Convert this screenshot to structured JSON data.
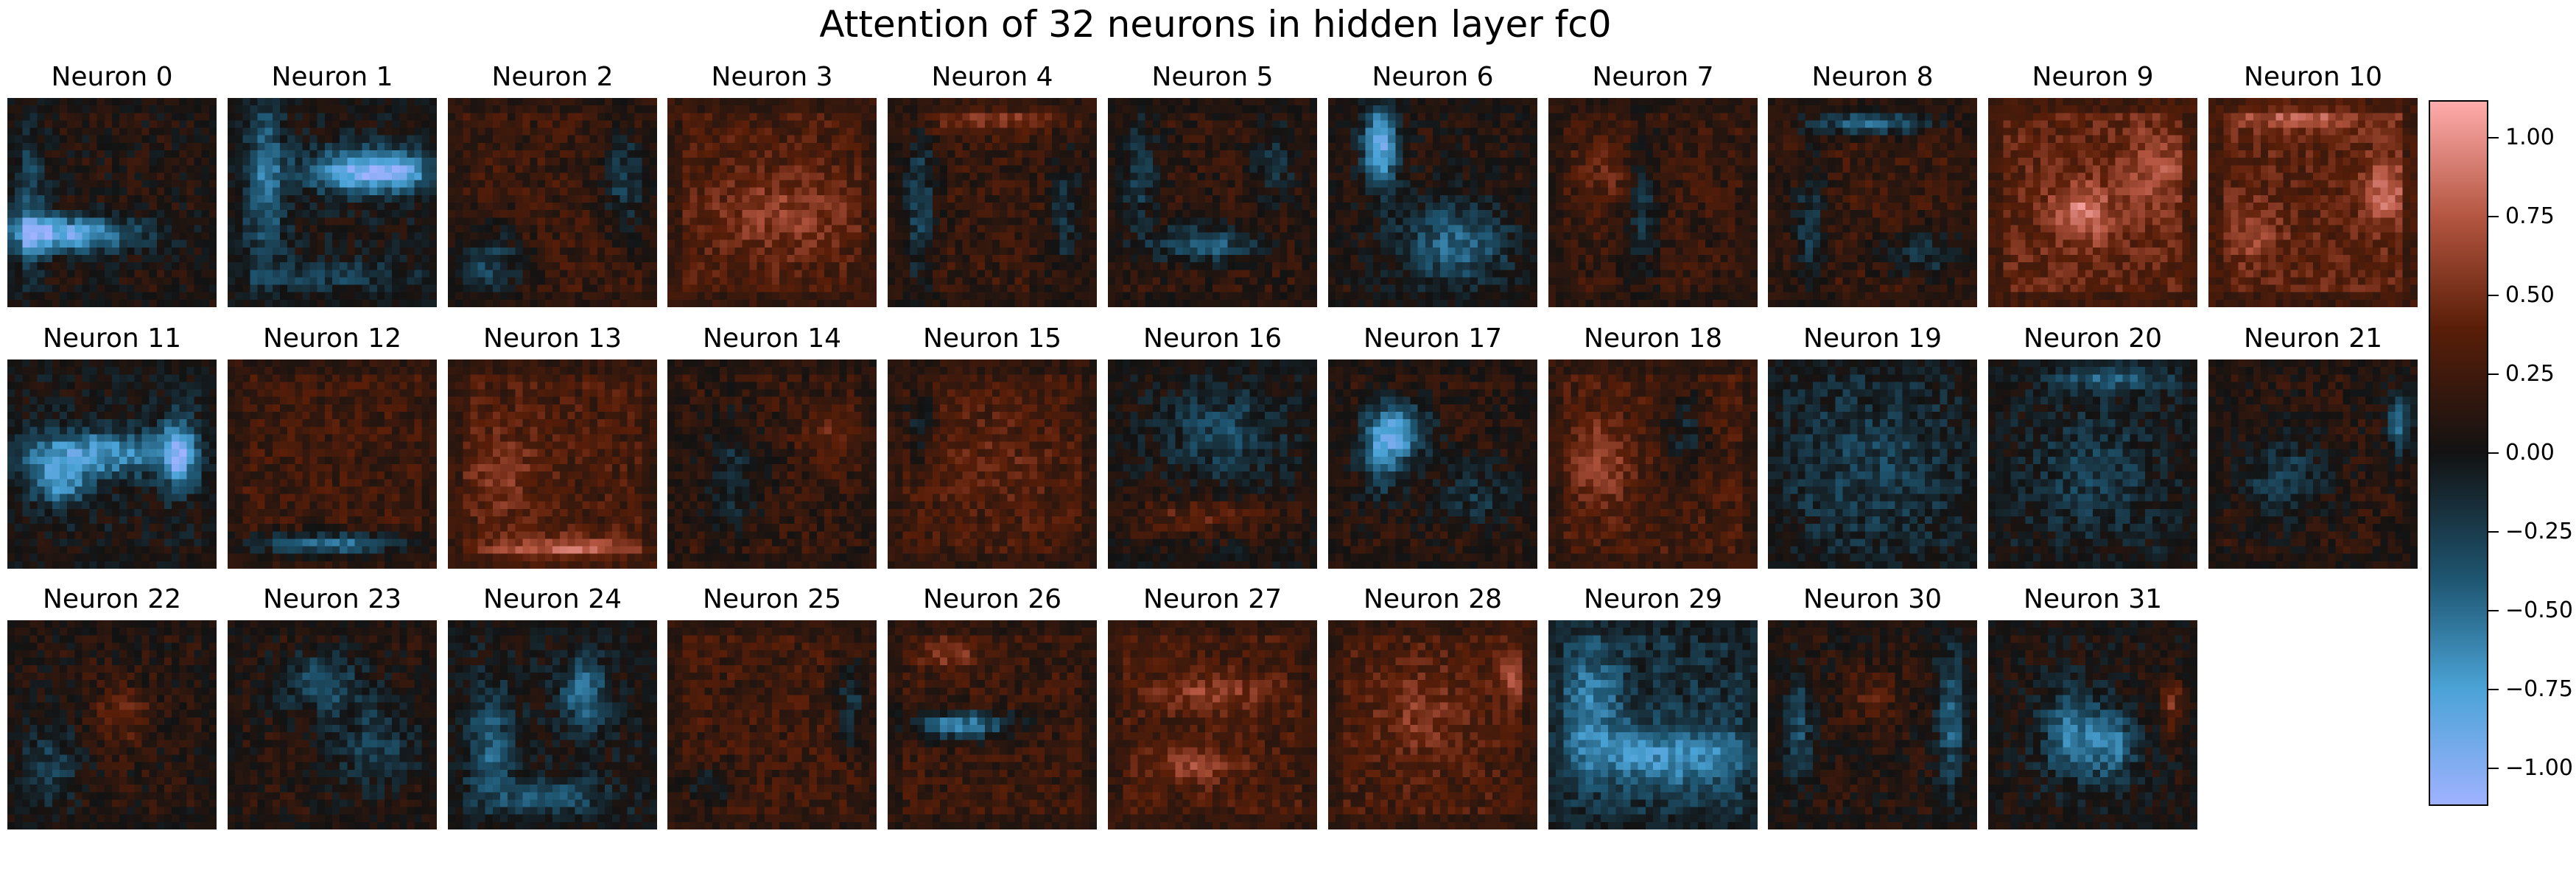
{
  "chart_data": {
    "type": "heatmap",
    "title": "Attention of 32 neurons in hidden layer fc0",
    "layout": {
      "rows": 3,
      "cols": 11
    },
    "grid_resolution": 28,
    "value_range": [
      -1.12,
      1.12
    ],
    "colormap": "diverging-berlin",
    "colormap_stops": [
      {
        "value": -1.12,
        "color": "#9fb2ff"
      },
      {
        "value": -0.75,
        "color": "#4aa3d6"
      },
      {
        "value": -0.4,
        "color": "#1e5570"
      },
      {
        "value": 0.0,
        "color": "#121212"
      },
      {
        "value": 0.4,
        "color": "#5a1e08"
      },
      {
        "value": 0.75,
        "color": "#b35540"
      },
      {
        "value": 1.12,
        "color": "#ffacac"
      }
    ],
    "colorbar": {
      "placement": "right",
      "ticks": [
        "1.00",
        "0.75",
        "0.50",
        "0.25",
        "0.00",
        "−0.25",
        "−0.50",
        "−0.75",
        "−1.00"
      ],
      "tick_values": [
        1.0,
        0.75,
        0.5,
        0.25,
        0.0,
        -0.25,
        -0.5,
        -0.75,
        -1.0
      ]
    },
    "panels": [
      {
        "label": "Neuron 0",
        "bias": 0.08,
        "blobs": [
          [
            0.22,
            0.65,
            0.28,
            0.06,
            -1.0
          ],
          [
            0.1,
            0.5,
            0.06,
            0.25,
            -0.45
          ]
        ]
      },
      {
        "label": "Neuron 1",
        "bias": 0.02,
        "blobs": [
          [
            0.7,
            0.35,
            0.22,
            0.07,
            -1.1
          ],
          [
            0.18,
            0.4,
            0.07,
            0.3,
            -0.5
          ],
          [
            0.5,
            0.85,
            0.3,
            0.05,
            -0.3
          ]
        ]
      },
      {
        "label": "Neuron 2",
        "bias": 0.22,
        "blobs": [
          [
            0.2,
            0.8,
            0.12,
            0.12,
            -0.5
          ],
          [
            0.85,
            0.4,
            0.08,
            0.18,
            -0.45
          ]
        ]
      },
      {
        "label": "Neuron 3",
        "bias": 0.3,
        "blobs": [
          [
            0.55,
            0.55,
            0.25,
            0.15,
            0.3
          ]
        ]
      },
      {
        "label": "Neuron 4",
        "bias": 0.2,
        "blobs": [
          [
            0.5,
            0.1,
            0.3,
            0.05,
            0.35
          ],
          [
            0.15,
            0.5,
            0.06,
            0.3,
            -0.45
          ],
          [
            0.85,
            0.55,
            0.06,
            0.25,
            -0.35
          ]
        ]
      },
      {
        "label": "Neuron 5",
        "bias": 0.15,
        "blobs": [
          [
            0.45,
            0.7,
            0.18,
            0.06,
            -0.6
          ],
          [
            0.15,
            0.35,
            0.06,
            0.2,
            -0.4
          ],
          [
            0.8,
            0.3,
            0.08,
            0.15,
            -0.3
          ]
        ]
      },
      {
        "label": "Neuron 6",
        "bias": 0.1,
        "blobs": [
          [
            0.25,
            0.22,
            0.06,
            0.14,
            -1.0
          ],
          [
            0.6,
            0.7,
            0.2,
            0.15,
            -0.55
          ]
        ]
      },
      {
        "label": "Neuron 7",
        "bias": 0.2,
        "blobs": [
          [
            0.45,
            0.5,
            0.06,
            0.25,
            -0.4
          ],
          [
            0.3,
            0.35,
            0.12,
            0.12,
            0.25
          ]
        ]
      },
      {
        "label": "Neuron 8",
        "bias": 0.22,
        "blobs": [
          [
            0.5,
            0.12,
            0.22,
            0.04,
            -0.7
          ],
          [
            0.2,
            0.6,
            0.06,
            0.25,
            -0.4
          ],
          [
            0.75,
            0.75,
            0.15,
            0.08,
            -0.4
          ]
        ]
      },
      {
        "label": "Neuron 9",
        "bias": 0.42,
        "blobs": [
          [
            0.45,
            0.55,
            0.1,
            0.1,
            0.5
          ],
          [
            0.8,
            0.35,
            0.1,
            0.15,
            0.3
          ]
        ]
      },
      {
        "label": "Neuron 10",
        "bias": 0.4,
        "blobs": [
          [
            0.45,
            0.08,
            0.25,
            0.05,
            0.4
          ],
          [
            0.85,
            0.45,
            0.07,
            0.12,
            0.45
          ],
          [
            0.2,
            0.65,
            0.1,
            0.1,
            0.25
          ]
        ]
      },
      {
        "label": "Neuron 11",
        "bias": 0.02,
        "blobs": [
          [
            0.4,
            0.45,
            0.3,
            0.08,
            -0.75
          ],
          [
            0.82,
            0.45,
            0.06,
            0.12,
            -0.85
          ],
          [
            0.25,
            0.6,
            0.1,
            0.08,
            -0.6
          ]
        ]
      },
      {
        "label": "Neuron 12",
        "bias": 0.25,
        "blobs": [
          [
            0.5,
            0.88,
            0.3,
            0.04,
            -0.75
          ]
        ]
      },
      {
        "label": "Neuron 13",
        "bias": 0.3,
        "blobs": [
          [
            0.55,
            0.92,
            0.25,
            0.05,
            0.55
          ],
          [
            0.25,
            0.55,
            0.12,
            0.15,
            0.25
          ]
        ]
      },
      {
        "label": "Neuron 14",
        "bias": 0.18,
        "blobs": [
          [
            0.3,
            0.55,
            0.1,
            0.2,
            -0.35
          ],
          [
            0.8,
            0.35,
            0.1,
            0.1,
            0.3
          ]
        ]
      },
      {
        "label": "Neuron 15",
        "bias": 0.25,
        "blobs": [
          [
            0.5,
            0.5,
            0.25,
            0.2,
            0.15
          ],
          [
            0.15,
            0.3,
            0.05,
            0.15,
            -0.35
          ]
        ]
      },
      {
        "label": "Neuron 16",
        "bias": 0.05,
        "blobs": [
          [
            0.45,
            0.75,
            0.3,
            0.06,
            0.35
          ],
          [
            0.55,
            0.35,
            0.2,
            0.15,
            -0.35
          ]
        ]
      },
      {
        "label": "Neuron 17",
        "bias": 0.12,
        "blobs": [
          [
            0.35,
            0.35,
            0.1,
            0.1,
            -0.7
          ],
          [
            0.25,
            0.45,
            0.07,
            0.14,
            -0.6
          ],
          [
            0.7,
            0.65,
            0.15,
            0.1,
            -0.3
          ]
        ]
      },
      {
        "label": "Neuron 18",
        "bias": 0.28,
        "blobs": [
          [
            0.25,
            0.5,
            0.1,
            0.15,
            0.35
          ],
          [
            0.65,
            0.35,
            0.08,
            0.15,
            -0.35
          ]
        ]
      },
      {
        "label": "Neuron 19",
        "bias": 0.0,
        "blobs": [
          [
            0.5,
            0.5,
            0.3,
            0.3,
            -0.25
          ]
        ]
      },
      {
        "label": "Neuron 20",
        "bias": 0.0,
        "blobs": [
          [
            0.6,
            0.08,
            0.2,
            0.05,
            -0.45
          ],
          [
            0.5,
            0.55,
            0.2,
            0.2,
            -0.25
          ]
        ]
      },
      {
        "label": "Neuron 21",
        "bias": 0.12,
        "blobs": [
          [
            0.92,
            0.3,
            0.04,
            0.1,
            -0.75
          ],
          [
            0.35,
            0.55,
            0.15,
            0.15,
            -0.35
          ]
        ]
      },
      {
        "label": "Neuron 22",
        "bias": 0.1,
        "blobs": [
          [
            0.55,
            0.45,
            0.1,
            0.1,
            0.35
          ],
          [
            0.2,
            0.7,
            0.1,
            0.15,
            -0.35
          ]
        ]
      },
      {
        "label": "Neuron 23",
        "bias": 0.1,
        "blobs": [
          [
            0.45,
            0.3,
            0.15,
            0.1,
            -0.45
          ],
          [
            0.7,
            0.6,
            0.15,
            0.15,
            -0.35
          ]
        ]
      },
      {
        "label": "Neuron 24",
        "bias": 0.02,
        "blobs": [
          [
            0.65,
            0.35,
            0.08,
            0.12,
            -0.55
          ],
          [
            0.2,
            0.6,
            0.08,
            0.2,
            -0.45
          ],
          [
            0.5,
            0.85,
            0.2,
            0.06,
            -0.4
          ]
        ]
      },
      {
        "label": "Neuron 25",
        "bias": 0.25,
        "blobs": [
          [
            0.88,
            0.4,
            0.05,
            0.15,
            -0.45
          ],
          [
            0.2,
            0.8,
            0.1,
            0.08,
            -0.3
          ]
        ]
      },
      {
        "label": "Neuron 26",
        "bias": 0.22,
        "blobs": [
          [
            0.35,
            0.5,
            0.18,
            0.05,
            -0.8
          ],
          [
            0.3,
            0.15,
            0.1,
            0.06,
            0.35
          ]
        ]
      },
      {
        "label": "Neuron 27",
        "bias": 0.28,
        "blobs": [
          [
            0.5,
            0.35,
            0.2,
            0.06,
            0.35
          ],
          [
            0.4,
            0.7,
            0.15,
            0.06,
            0.35
          ]
        ]
      },
      {
        "label": "Neuron 28",
        "bias": 0.3,
        "blobs": [
          [
            0.88,
            0.25,
            0.05,
            0.08,
            0.5
          ],
          [
            0.45,
            0.45,
            0.15,
            0.15,
            0.25
          ]
        ]
      },
      {
        "label": "Neuron 29",
        "bias": -0.15,
        "blobs": [
          [
            0.6,
            0.65,
            0.3,
            0.1,
            -0.55
          ],
          [
            0.2,
            0.4,
            0.1,
            0.2,
            -0.45
          ]
        ]
      },
      {
        "label": "Neuron 30",
        "bias": 0.1,
        "blobs": [
          [
            0.88,
            0.45,
            0.05,
            0.25,
            -0.55
          ],
          [
            0.15,
            0.5,
            0.05,
            0.2,
            -0.45
          ],
          [
            0.5,
            0.35,
            0.1,
            0.1,
            0.25
          ]
        ]
      },
      {
        "label": "Neuron 31",
        "bias": 0.05,
        "blobs": [
          [
            0.4,
            0.55,
            0.1,
            0.15,
            -0.6
          ],
          [
            0.6,
            0.6,
            0.08,
            0.12,
            -0.55
          ],
          [
            0.88,
            0.4,
            0.04,
            0.1,
            0.45
          ]
        ]
      }
    ]
  }
}
